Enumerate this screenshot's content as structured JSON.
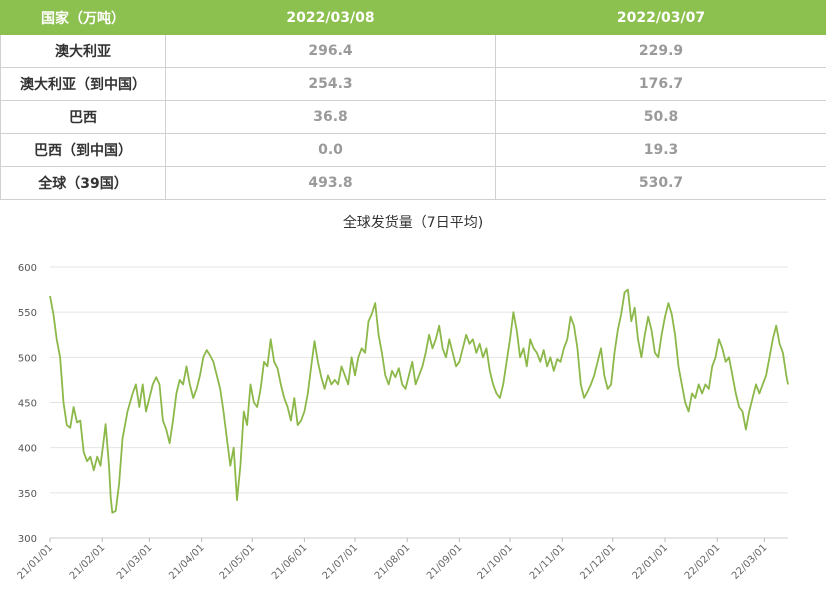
{
  "table": {
    "headers": [
      "国家（万吨）",
      "2022/03/08",
      "2022/03/07"
    ],
    "rows": [
      {
        "country": "澳大利亚",
        "d1": "296.4",
        "d2": "229.9"
      },
      {
        "country": "澳大利亚（到中国）",
        "d1": "254.3",
        "d2": "176.7"
      },
      {
        "country": "巴西",
        "d1": "36.8",
        "d2": "50.8"
      },
      {
        "country": "巴西（到中国）",
        "d1": "0.0",
        "d2": "19.3"
      },
      {
        "country": "全球（39国）",
        "d1": "493.8",
        "d2": "530.7"
      }
    ]
  },
  "colors": {
    "header_bg": "#8cc04f",
    "line": "#8cb84a",
    "grid": "#e4e4e4"
  },
  "chart_data": {
    "type": "line",
    "title": "全球发货量（7日平均)",
    "xlabel": "",
    "ylabel": "",
    "ylim": [
      300,
      600
    ],
    "yticks": [
      300,
      350,
      400,
      450,
      500,
      550,
      600
    ],
    "xticks": [
      "21/01/01",
      "21/02/01",
      "21/03/01",
      "21/04/01",
      "21/05/01",
      "21/06/01",
      "21/07/01",
      "21/08/01",
      "21/09/01",
      "21/10/01",
      "21/11/01",
      "21/12/01",
      "22/01/01",
      "22/02/01",
      "22/03/01"
    ],
    "grid": true,
    "series": [
      {
        "points": [
          [
            "21/01/01",
            568
          ],
          [
            "21/01/03",
            548
          ],
          [
            "21/01/05",
            520
          ],
          [
            "21/01/07",
            500
          ],
          [
            "21/01/09",
            450
          ],
          [
            "21/01/11",
            425
          ],
          [
            "21/01/13",
            422
          ],
          [
            "21/01/15",
            445
          ],
          [
            "21/01/17",
            428
          ],
          [
            "21/01/19",
            430
          ],
          [
            "21/01/21",
            395
          ],
          [
            "21/01/23",
            385
          ],
          [
            "21/01/25",
            390
          ],
          [
            "21/01/27",
            375
          ],
          [
            "21/01/29",
            390
          ],
          [
            "21/01/31",
            380
          ],
          [
            "21/02/02",
            410
          ],
          [
            "21/02/03",
            426
          ],
          [
            "21/02/05",
            380
          ],
          [
            "21/02/06",
            345
          ],
          [
            "21/02/07",
            328
          ],
          [
            "21/02/09",
            330
          ],
          [
            "21/02/11",
            360
          ],
          [
            "21/02/13",
            410
          ],
          [
            "21/02/16",
            440
          ],
          [
            "21/02/19",
            460
          ],
          [
            "21/02/21",
            470
          ],
          [
            "21/02/23",
            445
          ],
          [
            "21/02/25",
            470
          ],
          [
            "21/02/27",
            440
          ],
          [
            "21/03/01",
            455
          ],
          [
            "21/03/03",
            470
          ],
          [
            "21/03/05",
            478
          ],
          [
            "21/03/07",
            470
          ],
          [
            "21/03/09",
            430
          ],
          [
            "21/03/11",
            420
          ],
          [
            "21/03/13",
            405
          ],
          [
            "21/03/15",
            430
          ],
          [
            "21/03/17",
            460
          ],
          [
            "21/03/19",
            475
          ],
          [
            "21/03/21",
            470
          ],
          [
            "21/03/23",
            490
          ],
          [
            "21/03/25",
            470
          ],
          [
            "21/03/27",
            455
          ],
          [
            "21/03/29",
            465
          ],
          [
            "21/03/31",
            480
          ],
          [
            "21/04/02",
            500
          ],
          [
            "21/04/04",
            508
          ],
          [
            "21/04/06",
            502
          ],
          [
            "21/04/08",
            495
          ],
          [
            "21/04/10",
            480
          ],
          [
            "21/04/12",
            465
          ],
          [
            "21/04/14",
            440
          ],
          [
            "21/04/16",
            410
          ],
          [
            "21/04/18",
            380
          ],
          [
            "21/04/20",
            400
          ],
          [
            "21/04/22",
            342
          ],
          [
            "21/04/24",
            380
          ],
          [
            "21/04/26",
            440
          ],
          [
            "21/04/28",
            425
          ],
          [
            "21/04/30",
            470
          ],
          [
            "21/05/02",
            450
          ],
          [
            "21/05/04",
            445
          ],
          [
            "21/05/06",
            465
          ],
          [
            "21/05/08",
            495
          ],
          [
            "21/05/10",
            490
          ],
          [
            "21/05/12",
            520
          ],
          [
            "21/05/14",
            495
          ],
          [
            "21/05/16",
            488
          ],
          [
            "21/05/18",
            470
          ],
          [
            "21/05/20",
            455
          ],
          [
            "21/05/22",
            445
          ],
          [
            "21/05/24",
            430
          ],
          [
            "21/05/26",
            455
          ],
          [
            "21/05/28",
            425
          ],
          [
            "21/05/30",
            430
          ],
          [
            "21/06/01",
            440
          ],
          [
            "21/06/03",
            460
          ],
          [
            "21/06/05",
            490
          ],
          [
            "21/06/07",
            518
          ],
          [
            "21/06/09",
            495
          ],
          [
            "21/06/11",
            478
          ],
          [
            "21/06/13",
            465
          ],
          [
            "21/06/15",
            480
          ],
          [
            "21/06/17",
            470
          ],
          [
            "21/06/19",
            475
          ],
          [
            "21/06/21",
            470
          ],
          [
            "21/06/23",
            490
          ],
          [
            "21/06/25",
            480
          ],
          [
            "21/06/27",
            470
          ],
          [
            "21/06/29",
            500
          ],
          [
            "21/07/01",
            480
          ],
          [
            "21/07/03",
            500
          ],
          [
            "21/07/05",
            510
          ],
          [
            "21/07/07",
            505
          ],
          [
            "21/07/09",
            540
          ],
          [
            "21/07/11",
            548
          ],
          [
            "21/07/13",
            560
          ],
          [
            "21/07/15",
            525
          ],
          [
            "21/07/17",
            505
          ],
          [
            "21/07/19",
            480
          ],
          [
            "21/07/21",
            470
          ],
          [
            "21/07/23",
            485
          ],
          [
            "21/07/25",
            478
          ],
          [
            "21/07/27",
            488
          ],
          [
            "21/07/29",
            470
          ],
          [
            "21/07/31",
            465
          ],
          [
            "21/08/02",
            480
          ],
          [
            "21/08/04",
            495
          ],
          [
            "21/08/06",
            470
          ],
          [
            "21/08/08",
            480
          ],
          [
            "21/08/10",
            490
          ],
          [
            "21/08/12",
            505
          ],
          [
            "21/08/14",
            525
          ],
          [
            "21/08/16",
            510
          ],
          [
            "21/08/18",
            520
          ],
          [
            "21/08/20",
            535
          ],
          [
            "21/08/22",
            510
          ],
          [
            "21/08/24",
            500
          ],
          [
            "21/08/26",
            520
          ],
          [
            "21/08/28",
            505
          ],
          [
            "21/08/30",
            490
          ],
          [
            "21/09/01",
            495
          ],
          [
            "21/09/03",
            510
          ],
          [
            "21/09/05",
            525
          ],
          [
            "21/09/07",
            515
          ],
          [
            "21/09/09",
            520
          ],
          [
            "21/09/11",
            505
          ],
          [
            "21/09/13",
            515
          ],
          [
            "21/09/15",
            500
          ],
          [
            "21/09/17",
            510
          ],
          [
            "21/09/19",
            485
          ],
          [
            "21/09/21",
            470
          ],
          [
            "21/09/23",
            460
          ],
          [
            "21/09/25",
            455
          ],
          [
            "21/09/27",
            470
          ],
          [
            "21/09/29",
            495
          ],
          [
            "21/10/01",
            520
          ],
          [
            "21/10/03",
            550
          ],
          [
            "21/10/05",
            530
          ],
          [
            "21/10/07",
            500
          ],
          [
            "21/10/09",
            510
          ],
          [
            "21/10/11",
            490
          ],
          [
            "21/10/13",
            520
          ],
          [
            "21/10/15",
            510
          ],
          [
            "21/10/17",
            505
          ],
          [
            "21/10/19",
            495
          ],
          [
            "21/10/21",
            508
          ],
          [
            "21/10/23",
            490
          ],
          [
            "21/10/25",
            500
          ],
          [
            "21/10/27",
            485
          ],
          [
            "21/10/29",
            498
          ],
          [
            "21/10/31",
            495
          ],
          [
            "21/11/02",
            510
          ],
          [
            "21/11/04",
            520
          ],
          [
            "21/11/06",
            545
          ],
          [
            "21/11/08",
            535
          ],
          [
            "21/11/10",
            510
          ],
          [
            "21/11/12",
            470
          ],
          [
            "21/11/14",
            455
          ],
          [
            "21/11/16",
            462
          ],
          [
            "21/11/18",
            470
          ],
          [
            "21/11/20",
            480
          ],
          [
            "21/11/22",
            495
          ],
          [
            "21/11/24",
            510
          ],
          [
            "21/11/26",
            480
          ],
          [
            "21/11/28",
            465
          ],
          [
            "21/11/30",
            470
          ],
          [
            "21/12/02",
            505
          ],
          [
            "21/12/04",
            530
          ],
          [
            "21/12/06",
            548
          ],
          [
            "21/12/08",
            572
          ],
          [
            "21/12/10",
            575
          ],
          [
            "21/12/12",
            540
          ],
          [
            "21/12/14",
            555
          ],
          [
            "21/12/16",
            520
          ],
          [
            "21/12/18",
            500
          ],
          [
            "21/12/20",
            525
          ],
          [
            "21/12/22",
            545
          ],
          [
            "21/12/24",
            530
          ],
          [
            "21/12/26",
            505
          ],
          [
            "21/12/28",
            500
          ],
          [
            "21/12/30",
            525
          ],
          [
            "22/01/01",
            545
          ],
          [
            "22/01/03",
            560
          ],
          [
            "22/01/05",
            548
          ],
          [
            "22/01/07",
            525
          ],
          [
            "22/01/09",
            490
          ],
          [
            "22/01/11",
            470
          ],
          [
            "22/01/13",
            450
          ],
          [
            "22/01/15",
            440
          ],
          [
            "22/01/17",
            460
          ],
          [
            "22/01/19",
            455
          ],
          [
            "22/01/21",
            470
          ],
          [
            "22/01/23",
            460
          ],
          [
            "22/01/25",
            470
          ],
          [
            "22/01/27",
            465
          ],
          [
            "22/01/29",
            490
          ],
          [
            "22/01/31",
            500
          ],
          [
            "22/02/02",
            520
          ],
          [
            "22/02/04",
            510
          ],
          [
            "22/02/06",
            495
          ],
          [
            "22/02/08",
            500
          ],
          [
            "22/02/10",
            480
          ],
          [
            "22/02/12",
            460
          ],
          [
            "22/02/14",
            445
          ],
          [
            "22/02/16",
            440
          ],
          [
            "22/02/18",
            420
          ],
          [
            "22/02/20",
            440
          ],
          [
            "22/02/22",
            455
          ],
          [
            "22/02/24",
            470
          ],
          [
            "22/02/26",
            460
          ],
          [
            "22/02/28",
            470
          ],
          [
            "22/03/02",
            480
          ],
          [
            "22/03/04",
            500
          ],
          [
            "22/03/06",
            520
          ],
          [
            "22/03/08",
            535
          ],
          [
            "22/03/10",
            515
          ],
          [
            "22/03/12",
            505
          ],
          [
            "22/03/14",
            480
          ],
          [
            "22/03/15",
            470
          ]
        ]
      }
    ]
  }
}
